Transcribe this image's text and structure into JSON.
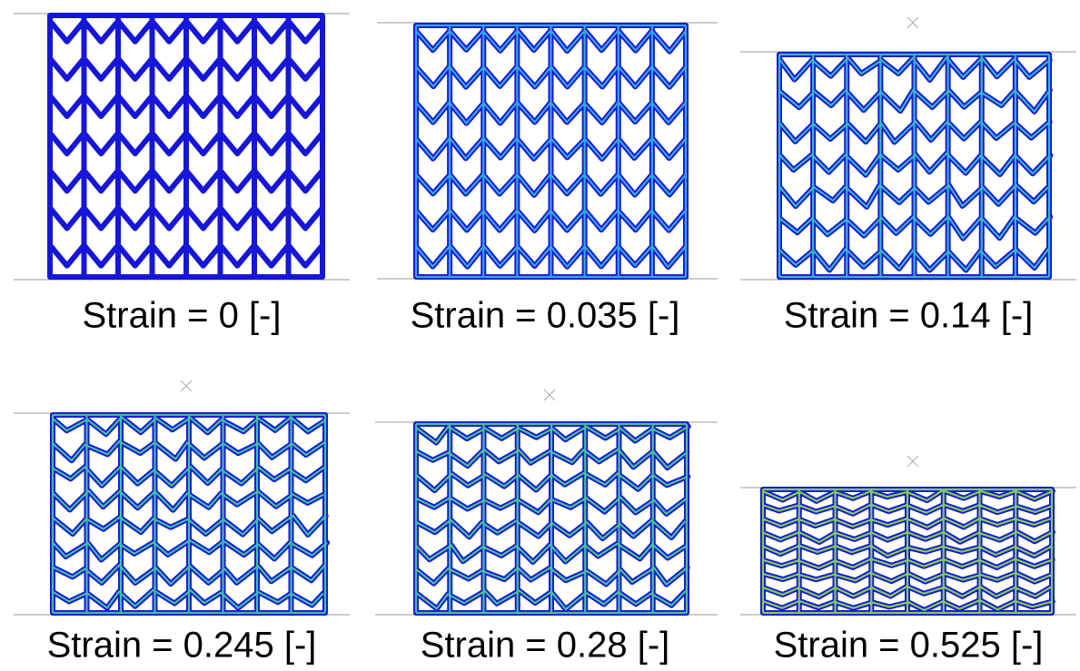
{
  "panels": [
    {
      "caption": "Strain = 0 [-]"
    },
    {
      "caption": "Strain = 0.035 [-]"
    },
    {
      "caption": "Strain = 0.14 [-]"
    },
    {
      "caption": "Strain = 0.245 [-]"
    },
    {
      "caption": "Strain = 0.28 [-]"
    },
    {
      "caption": "Strain = 0.525 [-]"
    }
  ]
}
